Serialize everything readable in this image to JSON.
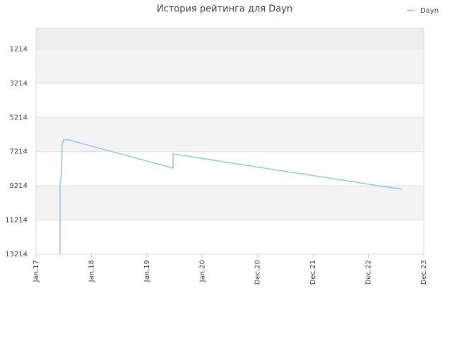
{
  "chart_data": {
    "type": "line",
    "title": "История рейтинга для Dayn",
    "x": [
      0.434,
      0.434,
      0.459,
      0.472,
      0.497,
      0.587,
      2.474,
      2.474,
      6.605
    ],
    "series": [
      {
        "name": "Dayn",
        "color": "#90c8f0",
        "values": [
          13214,
          9002,
          8589,
          6813,
          6524,
          6524,
          8176,
          7350,
          9415
        ]
      }
    ],
    "xlim": [
      0,
      7
    ],
    "xticks": [
      {
        "value": 0,
        "label": "Jan.17"
      },
      {
        "value": 1,
        "label": "Jan.18"
      },
      {
        "value": 2,
        "label": "Jan.19"
      },
      {
        "value": 3,
        "label": "Jan.20"
      },
      {
        "value": 4,
        "label": "Dec.20"
      },
      {
        "value": 5,
        "label": "Dec.21"
      },
      {
        "value": 6,
        "label": "Dec.22"
      },
      {
        "value": 7,
        "label": "Dec.23"
      }
    ],
    "ylim": [
      13214,
      0
    ],
    "yticks": [
      1214,
      3214,
      5214,
      7214,
      9214,
      11214,
      13214
    ],
    "grid": true,
    "legend": "top-right"
  }
}
